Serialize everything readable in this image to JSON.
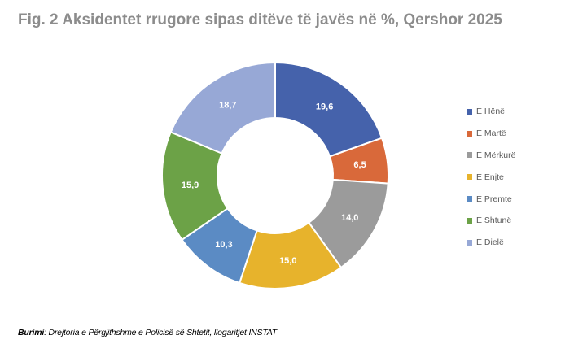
{
  "chart_data": {
    "type": "pie",
    "variant": "donut",
    "title": "Fig. 2 Aksidentet rrugore sipas ditëve të javës në %, Qershor 2025",
    "categories": [
      "E Hënë",
      "E Martë",
      "E Mërkurë",
      "E Enjte",
      "E Premte",
      "E Shtunë",
      "E Dielë"
    ],
    "values": [
      19.6,
      6.5,
      14.0,
      15.0,
      10.3,
      15.9,
      18.7
    ],
    "value_labels": [
      "19,6",
      "6,5",
      "14,0",
      "15,0",
      "10,3",
      "15,9",
      "18,7"
    ],
    "colors": [
      "#4562ab",
      "#d9693a",
      "#9b9b9b",
      "#e7b32c",
      "#5b8bc4",
      "#6ca247",
      "#97a8d6"
    ],
    "legend_position": "right"
  },
  "source": {
    "label": "Burimi",
    "text": ": Drejtoria e Përgjithshme e Policisë së Shtetit, llogaritjet INSTAT"
  }
}
